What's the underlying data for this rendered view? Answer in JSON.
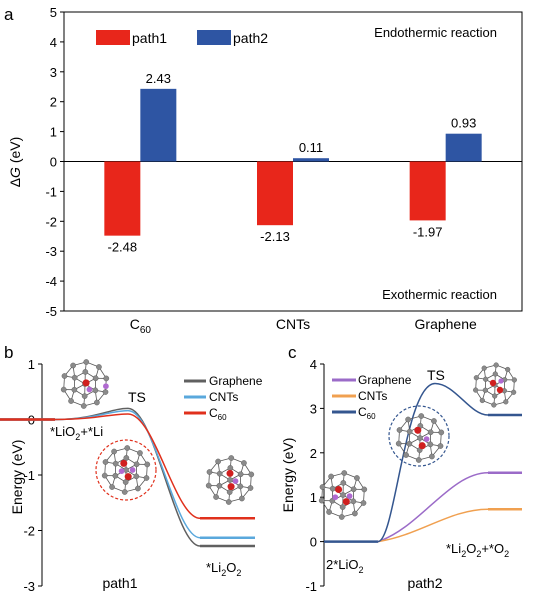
{
  "colors": {
    "path1": "#e8261b",
    "path2": "#2e55a3",
    "graphene": "#606060",
    "cnts": "#5aa8dc",
    "c60": "#e0301c",
    "graphene_c": "#9b6bc8",
    "cnts_c": "#f0a050",
    "c60_c": "#34568f",
    "carbon": "#8a8a8a",
    "oxygen": "#d01f1f",
    "lithium": "#b06ad0"
  },
  "chart_data": [
    {
      "panel": "a",
      "type": "bar",
      "categories": [
        "C",
        "CNTs",
        "Graphene"
      ],
      "category_subscripts": [
        "60",
        "",
        ""
      ],
      "series": [
        {
          "name": "path1",
          "values": [
            -2.48,
            -2.13,
            -1.97
          ]
        },
        {
          "name": "path2",
          "values": [
            2.43,
            0.11,
            0.93
          ]
        }
      ],
      "data_labels": {
        "path1": [
          "-2.48",
          "-2.13",
          "-1.97"
        ],
        "path2": [
          "2.43",
          "0.11",
          "0.93"
        ]
      },
      "ylabel_delta": "Δ",
      "ylabel_rest": " (eV)",
      "ylabel_italic": "G",
      "ylim": [
        -5,
        5
      ],
      "yticks": [
        "5",
        "4",
        "3",
        "2",
        "1",
        "0",
        "-1",
        "-2",
        "-3",
        "-4",
        "-5"
      ],
      "annotations": {
        "top": "Endothermic reaction",
        "bottom": "Exothermic reaction"
      },
      "legend": "top-left"
    },
    {
      "panel": "b",
      "type": "line",
      "ylabel": "Energy (eV)",
      "ylim": [
        -3,
        1
      ],
      "yticks": [
        "1",
        "0",
        "-1",
        "-2",
        "-3"
      ],
      "xlabel": "path1",
      "series": [
        {
          "name": "Graphene",
          "start": 0,
          "ts": 0.2,
          "end": -2.28
        },
        {
          "name": "CNTs",
          "start": 0,
          "ts": 0.16,
          "end": -2.13
        },
        {
          "name": "C60",
          "start": 0,
          "ts": 0.1,
          "end": -1.78
        }
      ],
      "annotations": {
        "ts": "TS",
        "start_a": "*LiO",
        "start_sub": "2",
        "start_b": "+*Li",
        "end_a": "*Li",
        "end_sub1": "2",
        "end_b": "O",
        "end_sub2": "2"
      },
      "legend": "top-right",
      "legend_c60_main": "C",
      "legend_c60_sub": "60"
    },
    {
      "panel": "c",
      "type": "line",
      "ylabel": "Energy (eV)",
      "ylim": [
        -1,
        4
      ],
      "yticks": [
        "4",
        "3",
        "2",
        "1",
        "0",
        "-1"
      ],
      "xlabel": "path2",
      "series": [
        {
          "name": "Graphene",
          "start": 0,
          "end": 1.55
        },
        {
          "name": "CNTs",
          "start": 0,
          "end": 0.73
        },
        {
          "name": "C60",
          "start": 0,
          "ts": 3.56,
          "end": 2.85
        }
      ],
      "annotations": {
        "ts": "TS",
        "start_a": "2*LiO",
        "start_sub": "2",
        "end_a": "*Li",
        "end_sub1": "2",
        "end_b": "O",
        "end_sub2": "2",
        "end_c": "+*O",
        "end_sub3": "2"
      },
      "legend": "top-left",
      "legend_c60_main": "C",
      "legend_c60_sub": "60"
    }
  ],
  "panel_labels": {
    "a": "a",
    "b": "b",
    "c": "c"
  }
}
